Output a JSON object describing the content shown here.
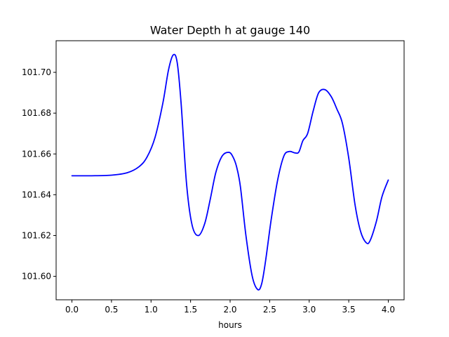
{
  "chart_data": {
    "type": "line",
    "title": "Water Depth h at gauge 140",
    "xlabel": "hours",
    "ylabel": "",
    "xlim": [
      -0.2,
      4.2
    ],
    "ylim": [
      101.5885,
      101.7155
    ],
    "xticks": [
      0.0,
      0.5,
      1.0,
      1.5,
      2.0,
      2.5,
      3.0,
      3.5,
      4.0
    ],
    "xtick_labels": [
      "0.0",
      "0.5",
      "1.0",
      "1.5",
      "2.0",
      "2.5",
      "3.0",
      "3.5",
      "4.0"
    ],
    "yticks": [
      101.6,
      101.62,
      101.64,
      101.66,
      101.68,
      101.7
    ],
    "ytick_labels": [
      "101.60",
      "101.62",
      "101.64",
      "101.66",
      "101.68",
      "101.70"
    ],
    "grid": false,
    "line_color": "#0000ff",
    "series": [
      {
        "x": [
          0.0,
          0.25,
          0.5,
          0.7,
          0.85,
          0.95,
          1.05,
          1.15,
          1.22,
          1.28,
          1.33,
          1.38,
          1.45,
          1.52,
          1.6,
          1.68,
          1.75,
          1.82,
          1.9,
          1.98,
          2.03,
          2.08,
          2.13,
          2.2,
          2.28,
          2.35,
          2.4,
          2.45,
          2.52,
          2.6,
          2.68,
          2.75,
          2.82,
          2.87,
          2.92,
          2.98,
          3.05,
          3.12,
          3.2,
          3.28,
          3.35,
          3.42,
          3.5,
          3.58,
          3.65,
          3.72,
          3.77,
          3.85,
          3.92,
          4.0
        ],
        "y": [
          101.6493,
          101.6493,
          101.6496,
          101.6508,
          101.6538,
          101.6585,
          101.668,
          101.685,
          101.701,
          101.7085,
          101.705,
          101.685,
          101.645,
          101.625,
          101.62,
          101.626,
          101.638,
          101.651,
          101.659,
          101.6608,
          101.659,
          101.654,
          101.644,
          101.62,
          101.6,
          101.5935,
          101.5965,
          101.608,
          101.628,
          101.647,
          101.659,
          101.6612,
          101.6605,
          101.661,
          101.6665,
          101.67,
          101.681,
          101.69,
          101.6915,
          101.688,
          101.682,
          101.675,
          101.658,
          101.635,
          101.622,
          101.6165,
          101.6175,
          101.627,
          101.639,
          101.6472
        ]
      }
    ]
  }
}
